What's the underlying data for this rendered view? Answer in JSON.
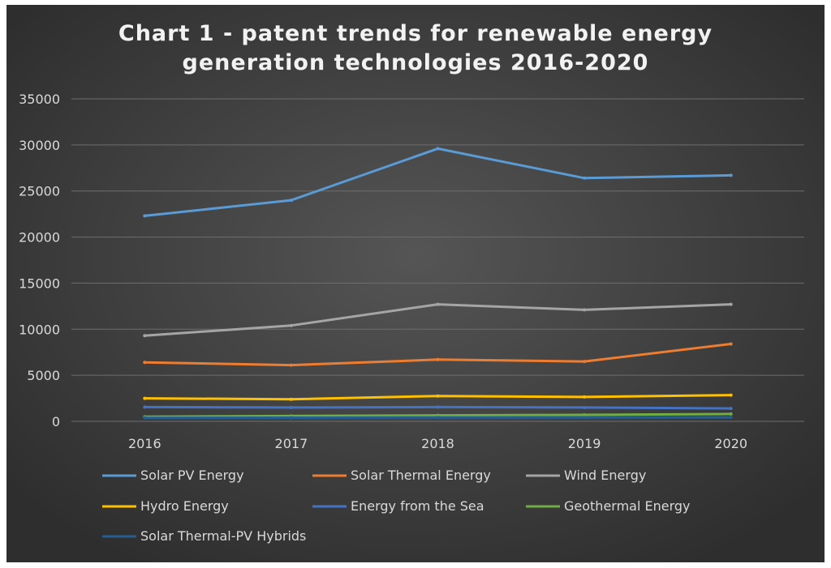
{
  "chart_data": {
    "type": "line",
    "title_lines": [
      "Chart 1 - patent trends for renewable energy",
      "generation technologies 2016-2020"
    ],
    "xlabel": "",
    "ylabel": "",
    "categories": [
      "2016",
      "2017",
      "2018",
      "2019",
      "2020"
    ],
    "ylim": [
      0,
      35000
    ],
    "y_ticks": [
      "0",
      "5000",
      "10000",
      "15000",
      "20000",
      "25000",
      "30000",
      "35000"
    ],
    "grid": true,
    "legend_position": "bottom",
    "series": [
      {
        "name": "Solar PV Energy",
        "color": "#5b9bd5",
        "values": [
          22300,
          24000,
          29600,
          26400,
          26700
        ]
      },
      {
        "name": "Solar Thermal Energy",
        "color": "#ed7d31",
        "values": [
          6400,
          6100,
          6700,
          6500,
          8400
        ]
      },
      {
        "name": "Wind Energy",
        "color": "#a5a5a5",
        "values": [
          9300,
          10400,
          12700,
          12100,
          12700
        ]
      },
      {
        "name": "Hydro Energy",
        "color": "#ffc000",
        "values": [
          2500,
          2400,
          2750,
          2650,
          2850
        ]
      },
      {
        "name": "Energy from the Sea",
        "color": "#4472c4",
        "values": [
          1550,
          1500,
          1550,
          1500,
          1400
        ]
      },
      {
        "name": "Geothermal Energy",
        "color": "#70ad47",
        "values": [
          500,
          580,
          650,
          700,
          800
        ]
      },
      {
        "name": "Solar Thermal-PV Hybrids",
        "color": "#255e91",
        "values": [
          380,
          400,
          420,
          420,
          430
        ]
      }
    ]
  }
}
